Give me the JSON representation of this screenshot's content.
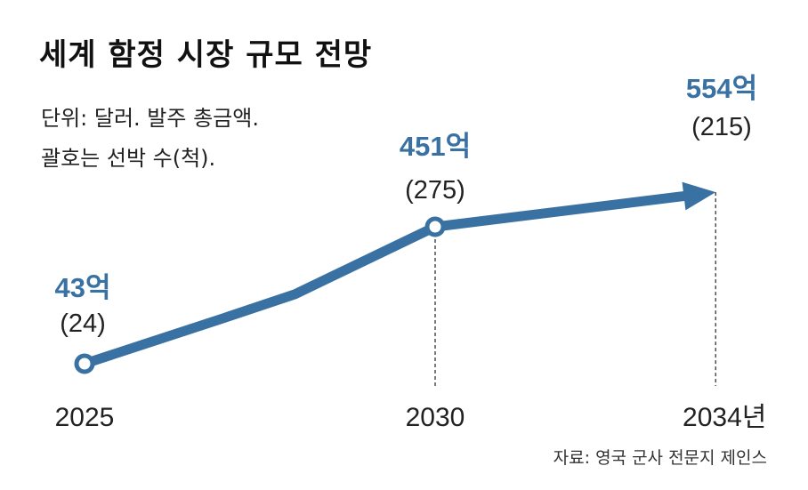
{
  "chart_data": {
    "type": "line",
    "title": "세계 함정 시장 규모 전망",
    "subtitle_lines": [
      "단위: 달러. 발주 총금액.",
      "괄호는 선박 수(척)."
    ],
    "x": [
      2025,
      2027,
      2028,
      2030,
      2034
    ],
    "y": [
      43,
      180,
      250,
      451,
      554
    ],
    "xlabel": "",
    "ylabel": "",
    "ylim": [
      0,
      600
    ],
    "x_ticks": [
      "2025",
      "2030",
      "2034년"
    ],
    "labeled_points": [
      {
        "x": 2025,
        "value_label": "43억",
        "count_label": "(24)"
      },
      {
        "x": 2030,
        "value_label": "451억",
        "count_label": "(275)"
      },
      {
        "x": 2034,
        "value_label": "554억",
        "count_label": "(215)"
      }
    ],
    "line_color": "#3a71a3",
    "grid": false
  },
  "source": "자료: 영국 군사 전문지 제인스"
}
